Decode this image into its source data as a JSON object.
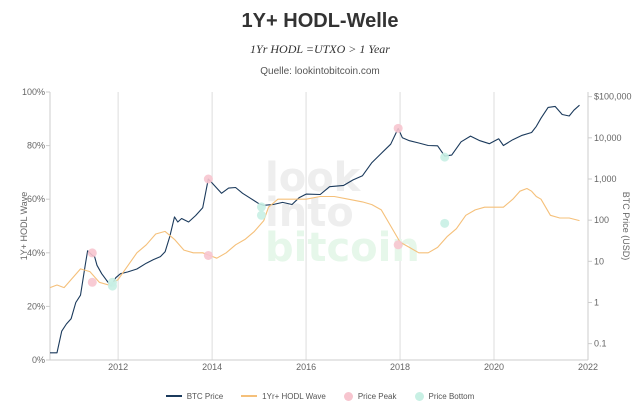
{
  "title": "1Y+ HODL-Welle",
  "subtitle": "1Yr HODL =UTXO > 1 Year",
  "source": "Quelle: lookintobitcoin.com",
  "watermark": [
    "look",
    "into",
    "bitcoin"
  ],
  "colors": {
    "btc_price": "#1b3a5c",
    "hodl_wave": "#f5c07a",
    "price_peak": "#f7c5cf",
    "price_bottom": "#c8f0e4",
    "grid": "#dddddd",
    "watermark_look": "#eeeeee",
    "watermark_into": "#eeeeee",
    "watermark_bitcoin": "#e6f7ea"
  },
  "chart_data": {
    "type": "line",
    "x_ticks": [
      "2012",
      "2014",
      "2016",
      "2018",
      "2020",
      "2022"
    ],
    "y_left_ticks": [
      "0%",
      "20%",
      "40%",
      "60%",
      "80%",
      "100%"
    ],
    "y_right_ticks": [
      "0.1",
      "1",
      "10",
      "100",
      "1,000",
      "10,000",
      "$100,000"
    ],
    "ylabel_left": "1Y+ HODL Wave",
    "ylabel_right": "BTC Price (USD)",
    "xlim": [
      2010.55,
      2022
    ],
    "ylim_left": [
      0,
      100
    ],
    "ylim_right": [
      0.04,
      130000
    ],
    "right_axis_scale": "log",
    "grid": "vertical",
    "legend_position": "bottom",
    "series": [
      {
        "name": "BTC Price",
        "axis": "right",
        "x": [
          2010.55,
          2010.7,
          2010.8,
          2010.9,
          2011.0,
          2011.1,
          2011.2,
          2011.3,
          2011.35,
          2011.45,
          2011.5,
          2011.55,
          2011.65,
          2011.75,
          2011.85,
          2011.95,
          2012.05,
          2012.2,
          2012.4,
          2012.6,
          2012.75,
          2012.9,
          2013.0,
          2013.1,
          2013.2,
          2013.27,
          2013.35,
          2013.5,
          2013.65,
          2013.8,
          2013.92,
          2014.0,
          2014.1,
          2014.2,
          2014.35,
          2014.5,
          2014.65,
          2014.8,
          2015.0,
          2015.1,
          2015.3,
          2015.5,
          2015.7,
          2015.85,
          2016.0,
          2016.3,
          2016.5,
          2016.8,
          2017.0,
          2017.2,
          2017.4,
          2017.6,
          2017.8,
          2017.96,
          2018.05,
          2018.2,
          2018.4,
          2018.6,
          2018.8,
          2018.95,
          2019.1,
          2019.3,
          2019.5,
          2019.7,
          2019.9,
          2020.1,
          2020.2,
          2020.4,
          2020.6,
          2020.8,
          2020.9,
          2021.0,
          2021.15,
          2021.3,
          2021.45,
          2021.6,
          2021.7,
          2021.82
        ],
        "values": [
          0.06,
          0.06,
          0.2,
          0.3,
          0.4,
          1.0,
          1.5,
          8.0,
          18.0,
          14.0,
          13.0,
          8.0,
          5.0,
          3.5,
          2.5,
          4.0,
          5.0,
          5.5,
          6.5,
          9.0,
          11.0,
          13.0,
          17.0,
          40.0,
          120.0,
          90.0,
          110.0,
          90.0,
          130.0,
          200.0,
          1000.0,
          800.0,
          600.0,
          450.0,
          600.0,
          620.0,
          450.0,
          350.0,
          250.0,
          230.0,
          240.0,
          270.0,
          240.0,
          350.0,
          430.0,
          420.0,
          650.0,
          700.0,
          950.0,
          1200.0,
          2500.0,
          4200.0,
          7000.0,
          17000.0,
          10000.0,
          8500.0,
          7500.0,
          6500.0,
          6400.0,
          3600.0,
          3800.0,
          8000.0,
          11000.0,
          8500.0,
          7200.0,
          9500.0,
          6500.0,
          9000.0,
          11500.0,
          13500.0,
          19000.0,
          30000.0,
          55000.0,
          58000.0,
          37000.0,
          34000.0,
          47000.0,
          62000.0
        ]
      },
      {
        "name": "1Yr+ HODL Wave",
        "axis": "left",
        "x": [
          2010.55,
          2010.7,
          2010.85,
          2011.0,
          2011.2,
          2011.4,
          2011.6,
          2011.8,
          2012.0,
          2012.2,
          2012.4,
          2012.6,
          2012.8,
          2013.0,
          2013.2,
          2013.4,
          2013.6,
          2013.8,
          2013.95,
          2014.1,
          2014.3,
          2014.5,
          2014.7,
          2014.9,
          2015.1,
          2015.2,
          2015.4,
          2015.6,
          2015.8,
          2016.0,
          2016.3,
          2016.6,
          2016.9,
          2017.2,
          2017.4,
          2017.6,
          2017.8,
          2018.0,
          2018.2,
          2018.4,
          2018.6,
          2018.8,
          2019.0,
          2019.2,
          2019.4,
          2019.6,
          2019.8,
          2020.0,
          2020.2,
          2020.4,
          2020.55,
          2020.7,
          2020.8,
          2020.9,
          2021.0,
          2021.2,
          2021.4,
          2021.6,
          2021.82
        ],
        "values": [
          27,
          28,
          27,
          30,
          34,
          33,
          29,
          28,
          30,
          35,
          40,
          43,
          47,
          48,
          45,
          41,
          40,
          40,
          39,
          38,
          40,
          43,
          45,
          48,
          52,
          57,
          60,
          60,
          60,
          60,
          61,
          61,
          60,
          59,
          58,
          56,
          50,
          44,
          42,
          40,
          40,
          42,
          46,
          49,
          54,
          56,
          57,
          57,
          57,
          60,
          63,
          64,
          63,
          61,
          60,
          54,
          53,
          53,
          52
        ]
      }
    ],
    "price_peaks": [
      {
        "x": 2011.45,
        "hodl": 29,
        "price": 16
      },
      {
        "x": 2013.92,
        "hodl": 39,
        "price": 1000
      },
      {
        "x": 2017.96,
        "hodl": 43,
        "price": 17000
      }
    ],
    "price_bottoms": [
      {
        "x": 2011.88,
        "hodl": 29,
        "price": 2.5
      },
      {
        "x": 2015.05,
        "hodl": 54,
        "price": 210
      },
      {
        "x": 2018.95,
        "hodl": 51,
        "price": 3400
      }
    ]
  },
  "legend": {
    "btc_price": "BTC Price",
    "hodl_wave": "1Yr+ HODL Wave",
    "price_peak": "Price Peak",
    "price_bottom": "Price Bottom"
  }
}
